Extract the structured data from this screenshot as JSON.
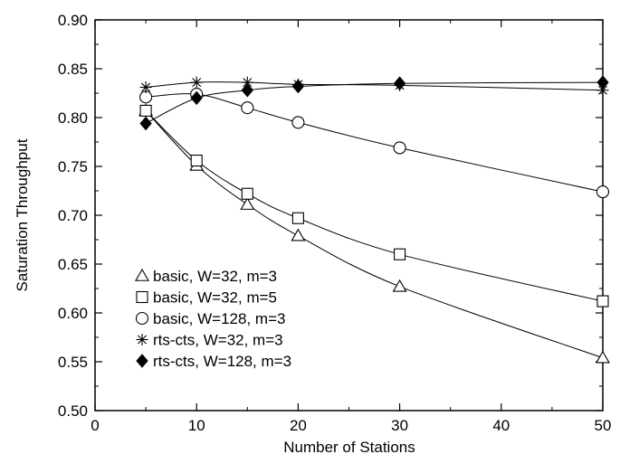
{
  "chart_data": {
    "type": "line",
    "title": "",
    "xlabel": "Number of Stations",
    "ylabel": "Saturation Throughput",
    "xlim": [
      0,
      50
    ],
    "ylim": [
      0.5,
      0.9
    ],
    "x_ticks": [
      0,
      10,
      20,
      30,
      40,
      50
    ],
    "y_ticks": [
      0.5,
      0.55,
      0.6,
      0.65,
      0.7,
      0.75,
      0.8,
      0.85,
      0.9
    ],
    "x_tick_labels": [
      "0",
      "10",
      "20",
      "30",
      "40",
      "50"
    ],
    "y_tick_labels": [
      "0.50",
      "0.55",
      "0.60",
      "0.65",
      "0.70",
      "0.75",
      "0.80",
      "0.85",
      "0.90"
    ],
    "grid": false,
    "legend_position": "bottom-left",
    "x": [
      5,
      10,
      15,
      20,
      30,
      50
    ],
    "series": [
      {
        "name": "basic, W=32, m=3",
        "marker": "triangle-open",
        "values": [
          0.807,
          0.751,
          0.711,
          0.679,
          0.627,
          0.554
        ]
      },
      {
        "name": "basic, W=32, m=5",
        "marker": "square-open",
        "values": [
          0.807,
          0.756,
          0.722,
          0.697,
          0.66,
          0.612
        ]
      },
      {
        "name": "basic, W=128, m=3",
        "marker": "circle-open",
        "values": [
          0.821,
          0.824,
          0.81,
          0.795,
          0.769,
          0.724
        ]
      },
      {
        "name": "rts-cts, W=32, m=3",
        "marker": "asterisk",
        "values": [
          0.831,
          0.836,
          0.836,
          0.834,
          0.833,
          0.828
        ]
      },
      {
        "name": "rts-cts, W=128, m=3",
        "marker": "diamond-filled",
        "values": [
          0.794,
          0.82,
          0.828,
          0.832,
          0.835,
          0.836
        ]
      }
    ]
  }
}
